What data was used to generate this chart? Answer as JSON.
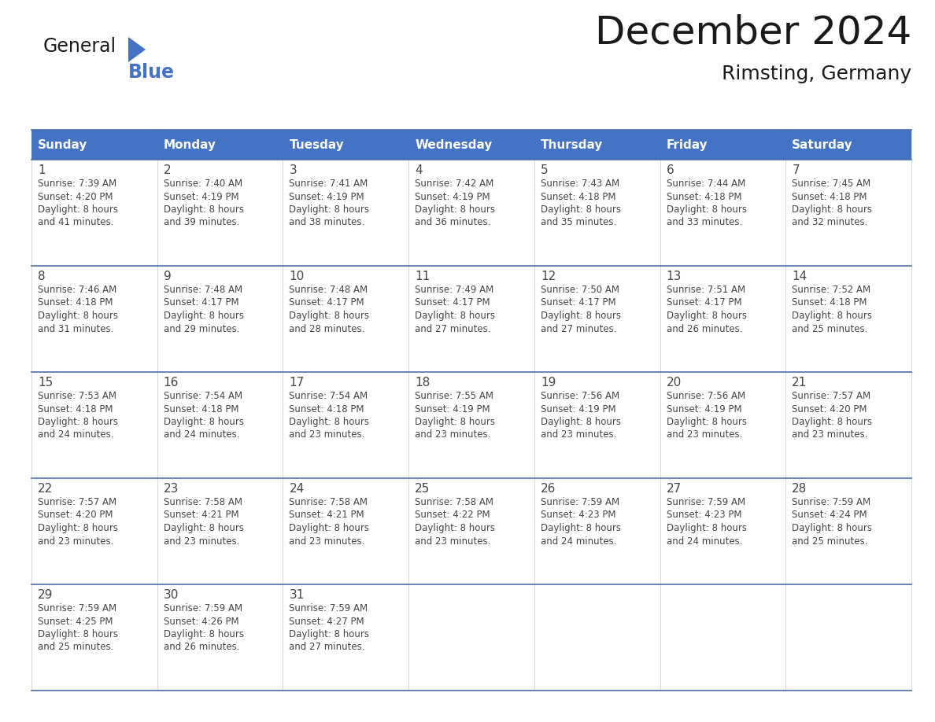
{
  "title": "December 2024",
  "subtitle": "Rimsting, Germany",
  "header_color": "#4472C4",
  "header_text_color": "#FFFFFF",
  "border_color": "#4a6fa5",
  "cell_bg_even": "#FFFFFF",
  "cell_bg_odd": "#f0f4f8",
  "text_color": "#444444",
  "day_headers": [
    "Sunday",
    "Monday",
    "Tuesday",
    "Wednesday",
    "Thursday",
    "Friday",
    "Saturday"
  ],
  "weeks": [
    [
      {
        "day": "1",
        "sunrise": "7:39 AM",
        "sunset": "4:20 PM",
        "daylight": "8 hours\nand 41 minutes."
      },
      {
        "day": "2",
        "sunrise": "7:40 AM",
        "sunset": "4:19 PM",
        "daylight": "8 hours\nand 39 minutes."
      },
      {
        "day": "3",
        "sunrise": "7:41 AM",
        "sunset": "4:19 PM",
        "daylight": "8 hours\nand 38 minutes."
      },
      {
        "day": "4",
        "sunrise": "7:42 AM",
        "sunset": "4:19 PM",
        "daylight": "8 hours\nand 36 minutes."
      },
      {
        "day": "5",
        "sunrise": "7:43 AM",
        "sunset": "4:18 PM",
        "daylight": "8 hours\nand 35 minutes."
      },
      {
        "day": "6",
        "sunrise": "7:44 AM",
        "sunset": "4:18 PM",
        "daylight": "8 hours\nand 33 minutes."
      },
      {
        "day": "7",
        "sunrise": "7:45 AM",
        "sunset": "4:18 PM",
        "daylight": "8 hours\nand 32 minutes."
      }
    ],
    [
      {
        "day": "8",
        "sunrise": "7:46 AM",
        "sunset": "4:18 PM",
        "daylight": "8 hours\nand 31 minutes."
      },
      {
        "day": "9",
        "sunrise": "7:48 AM",
        "sunset": "4:17 PM",
        "daylight": "8 hours\nand 29 minutes."
      },
      {
        "day": "10",
        "sunrise": "7:48 AM",
        "sunset": "4:17 PM",
        "daylight": "8 hours\nand 28 minutes."
      },
      {
        "day": "11",
        "sunrise": "7:49 AM",
        "sunset": "4:17 PM",
        "daylight": "8 hours\nand 27 minutes."
      },
      {
        "day": "12",
        "sunrise": "7:50 AM",
        "sunset": "4:17 PM",
        "daylight": "8 hours\nand 27 minutes."
      },
      {
        "day": "13",
        "sunrise": "7:51 AM",
        "sunset": "4:17 PM",
        "daylight": "8 hours\nand 26 minutes."
      },
      {
        "day": "14",
        "sunrise": "7:52 AM",
        "sunset": "4:18 PM",
        "daylight": "8 hours\nand 25 minutes."
      }
    ],
    [
      {
        "day": "15",
        "sunrise": "7:53 AM",
        "sunset": "4:18 PM",
        "daylight": "8 hours\nand 24 minutes."
      },
      {
        "day": "16",
        "sunrise": "7:54 AM",
        "sunset": "4:18 PM",
        "daylight": "8 hours\nand 24 minutes."
      },
      {
        "day": "17",
        "sunrise": "7:54 AM",
        "sunset": "4:18 PM",
        "daylight": "8 hours\nand 23 minutes."
      },
      {
        "day": "18",
        "sunrise": "7:55 AM",
        "sunset": "4:19 PM",
        "daylight": "8 hours\nand 23 minutes."
      },
      {
        "day": "19",
        "sunrise": "7:56 AM",
        "sunset": "4:19 PM",
        "daylight": "8 hours\nand 23 minutes."
      },
      {
        "day": "20",
        "sunrise": "7:56 AM",
        "sunset": "4:19 PM",
        "daylight": "8 hours\nand 23 minutes."
      },
      {
        "day": "21",
        "sunrise": "7:57 AM",
        "sunset": "4:20 PM",
        "daylight": "8 hours\nand 23 minutes."
      }
    ],
    [
      {
        "day": "22",
        "sunrise": "7:57 AM",
        "sunset": "4:20 PM",
        "daylight": "8 hours\nand 23 minutes."
      },
      {
        "day": "23",
        "sunrise": "7:58 AM",
        "sunset": "4:21 PM",
        "daylight": "8 hours\nand 23 minutes."
      },
      {
        "day": "24",
        "sunrise": "7:58 AM",
        "sunset": "4:21 PM",
        "daylight": "8 hours\nand 23 minutes."
      },
      {
        "day": "25",
        "sunrise": "7:58 AM",
        "sunset": "4:22 PM",
        "daylight": "8 hours\nand 23 minutes."
      },
      {
        "day": "26",
        "sunrise": "7:59 AM",
        "sunset": "4:23 PM",
        "daylight": "8 hours\nand 24 minutes."
      },
      {
        "day": "27",
        "sunrise": "7:59 AM",
        "sunset": "4:23 PM",
        "daylight": "8 hours\nand 24 minutes."
      },
      {
        "day": "28",
        "sunrise": "7:59 AM",
        "sunset": "4:24 PM",
        "daylight": "8 hours\nand 25 minutes."
      }
    ],
    [
      {
        "day": "29",
        "sunrise": "7:59 AM",
        "sunset": "4:25 PM",
        "daylight": "8 hours\nand 25 minutes."
      },
      {
        "day": "30",
        "sunrise": "7:59 AM",
        "sunset": "4:26 PM",
        "daylight": "8 hours\nand 26 minutes."
      },
      {
        "day": "31",
        "sunrise": "7:59 AM",
        "sunset": "4:27 PM",
        "daylight": "8 hours\nand 27 minutes."
      },
      null,
      null,
      null,
      null
    ]
  ],
  "logo_text1": "General",
  "logo_text2": "Blue",
  "logo_color1": "#1a1a1a",
  "logo_color2": "#4472C4",
  "logo_triangle_color": "#4472C4",
  "title_fontsize": 36,
  "subtitle_fontsize": 18,
  "header_fontsize": 11,
  "day_num_fontsize": 11,
  "cell_text_fontsize": 8.5
}
